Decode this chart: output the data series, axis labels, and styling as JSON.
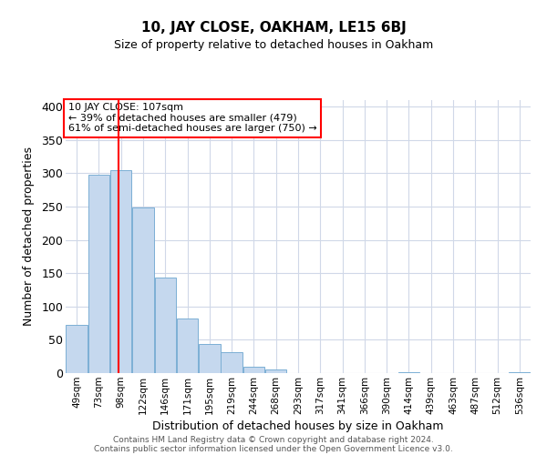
{
  "title": "10, JAY CLOSE, OAKHAM, LE15 6BJ",
  "subtitle": "Size of property relative to detached houses in Oakham",
  "xlabel": "Distribution of detached houses by size in Oakham",
  "ylabel": "Number of detached properties",
  "footer_line1": "Contains HM Land Registry data © Crown copyright and database right 2024.",
  "footer_line2": "Contains public sector information licensed under the Open Government Licence v3.0.",
  "bin_labels": [
    "49sqm",
    "73sqm",
    "98sqm",
    "122sqm",
    "146sqm",
    "171sqm",
    "195sqm",
    "219sqm",
    "244sqm",
    "268sqm",
    "293sqm",
    "317sqm",
    "341sqm",
    "366sqm",
    "390sqm",
    "414sqm",
    "439sqm",
    "463sqm",
    "487sqm",
    "512sqm",
    "536sqm"
  ],
  "bar_heights": [
    73,
    298,
    305,
    249,
    144,
    82,
    44,
    32,
    9,
    6,
    0,
    0,
    0,
    0,
    0,
    2,
    0,
    0,
    0,
    0,
    2
  ],
  "bar_color": "#c5d8ee",
  "bar_edge_color": "#7bafd4",
  "vline_color": "red",
  "annotation_title": "10 JAY CLOSE: 107sqm",
  "annotation_line1": "← 39% of detached houses are smaller (479)",
  "annotation_line2": "61% of semi-detached houses are larger (750) →",
  "annotation_box_color": "white",
  "annotation_box_edge": "red",
  "ylim": [
    0,
    410
  ],
  "yticks": [
    0,
    50,
    100,
    150,
    200,
    250,
    300,
    350,
    400
  ],
  "background_color": "white",
  "grid_color": "#d0d8e8"
}
